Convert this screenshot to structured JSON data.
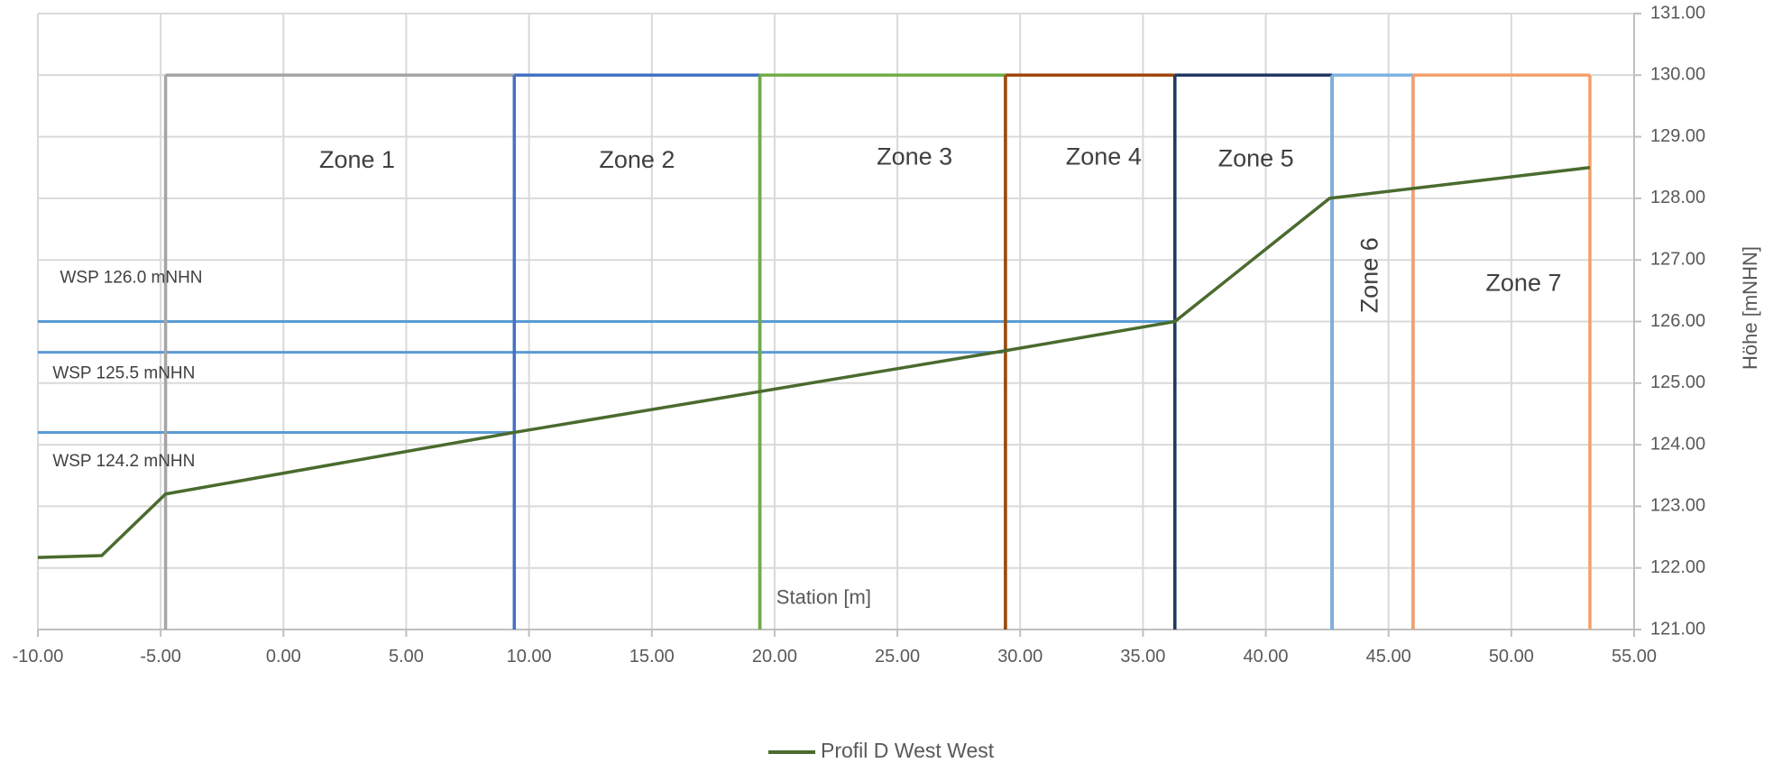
{
  "chart_data": {
    "type": "line",
    "title": "",
    "xlabel": "Station [m]",
    "ylabel": "Höhe [mNHN]",
    "xlim": [
      -10,
      55
    ],
    "ylim": [
      121,
      131
    ],
    "x_ticks": [
      -10,
      -5,
      0,
      5,
      10,
      15,
      20,
      25,
      30,
      35,
      40,
      45,
      50,
      55
    ],
    "y_ticks": [
      121,
      122,
      123,
      124,
      125,
      126,
      127,
      128,
      129,
      130,
      131
    ],
    "x_tick_labels": [
      "-10.00",
      "-5.00",
      "0.00",
      "5.00",
      "10.00",
      "15.00",
      "20.00",
      "25.00",
      "30.00",
      "35.00",
      "40.00",
      "45.00",
      "50.00",
      "55.00"
    ],
    "y_tick_labels": [
      "121.00",
      "122.00",
      "123.00",
      "124.00",
      "125.00",
      "126.00",
      "127.00",
      "128.00",
      "129.00",
      "130.00",
      "131.00"
    ],
    "y_axis_side": "right",
    "grid": true,
    "legend_position": "bottom-center",
    "series": [
      {
        "name": "Profil D West West",
        "color": "#4a6b2e",
        "x": [
          -10.0,
          -7.4,
          -4.8,
          9.4,
          29.3,
          36.3,
          42.6,
          53.2
        ],
        "y": [
          122.17,
          122.2,
          123.2,
          124.2,
          125.52,
          126.0,
          128.0,
          128.5
        ]
      }
    ],
    "zones": [
      {
        "label": "Zone 1",
        "x_start": -4.8,
        "x_end": 9.4,
        "top": 130,
        "color": "#a5a5a5",
        "label_x": 3.0,
        "label_y": 128.6,
        "rotated": false
      },
      {
        "label": "Zone 2",
        "x_start": 9.4,
        "x_end": 19.4,
        "top": 130,
        "color": "#4472c4",
        "label_x": 14.4,
        "label_y": 128.6,
        "rotated": false
      },
      {
        "label": "Zone 3",
        "x_start": 19.4,
        "x_end": 29.4,
        "top": 130,
        "color": "#70ad47",
        "label_x": 25.7,
        "label_y": 128.65,
        "rotated": false
      },
      {
        "label": "Zone 4",
        "x_start": 29.4,
        "x_end": 36.3,
        "top": 130,
        "color": "#9e480e",
        "label_x": 33.4,
        "label_y": 128.65,
        "rotated": false
      },
      {
        "label": "Zone 5",
        "x_start": 36.3,
        "x_end": 42.7,
        "top": 130,
        "color": "#203864",
        "label_x": 39.6,
        "label_y": 128.62,
        "rotated": false
      },
      {
        "label": "Zone 6",
        "x_start": 42.7,
        "x_end": 46.0,
        "top": 130,
        "color": "#7fb1e0",
        "label_x": 44.3,
        "label_y": 126.75,
        "rotated": true
      },
      {
        "label": "Zone 7",
        "x_start": 46.0,
        "x_end": 53.2,
        "top": 130,
        "color": "#f4a06a",
        "label_x": 50.5,
        "label_y": 126.6,
        "rotated": false
      }
    ],
    "water_levels": [
      {
        "label": "WSP 126.0 mNHN",
        "y": 126.0,
        "x_end": 36.3,
        "color": "#5b9bd5",
        "label_x": -9.1,
        "label_y": 126.7
      },
      {
        "label": "WSP 125.5 mNHN",
        "y": 125.5,
        "x_end": 29.3,
        "color": "#5b9bd5",
        "label_x": -9.4,
        "label_y": 125.15
      },
      {
        "label": "WSP 124.2 mNHN",
        "y": 124.2,
        "x_end": 9.4,
        "color": "#5b9bd5",
        "label_x": -9.4,
        "label_y": 123.72
      }
    ],
    "xlabel_position": {
      "x": 22.0,
      "y": 121.5
    }
  }
}
